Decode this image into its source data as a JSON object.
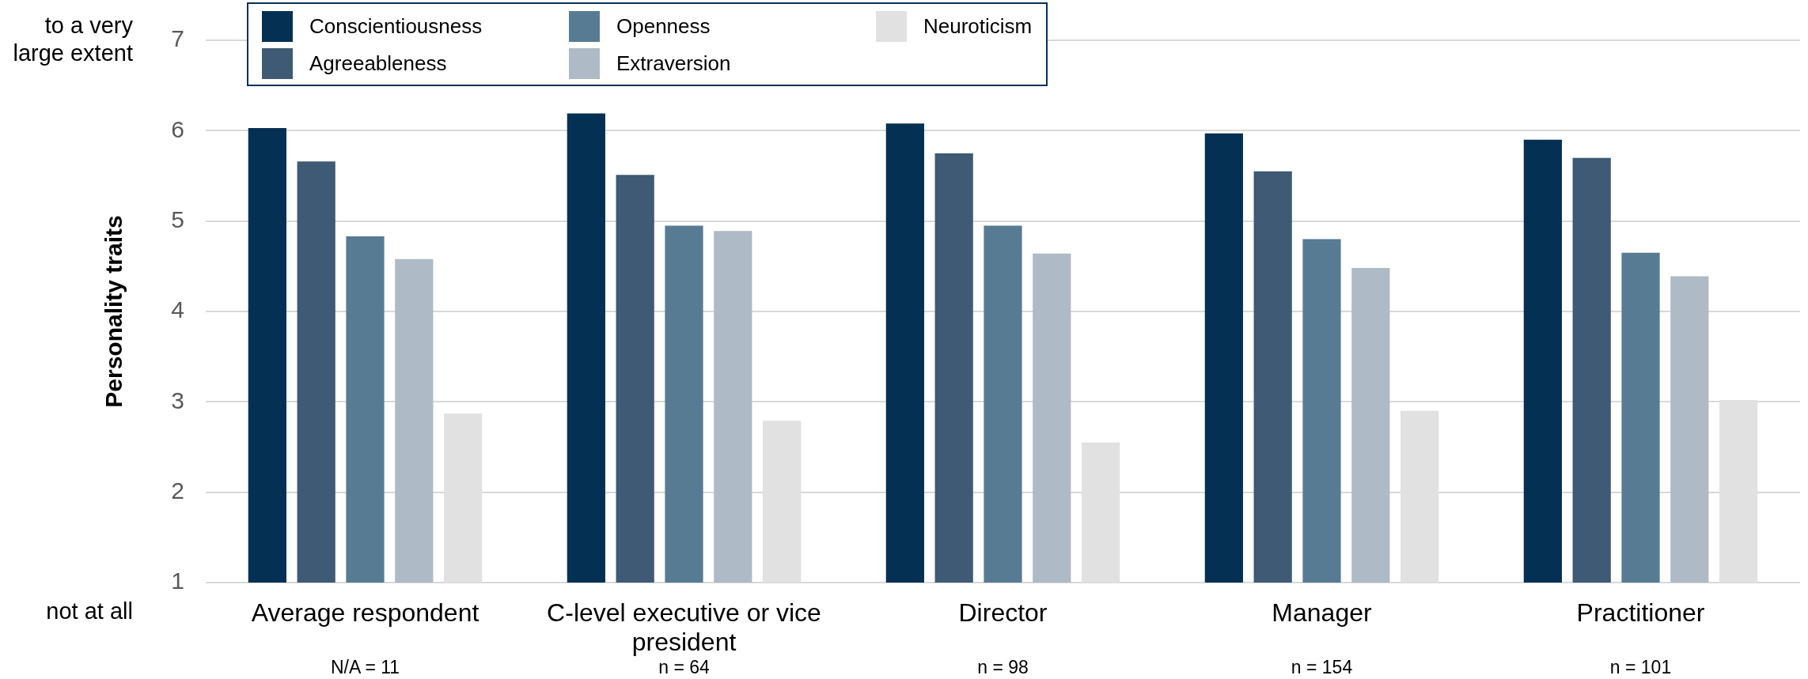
{
  "chart_data": {
    "type": "bar",
    "ylabel": "Personality traits",
    "categories": [
      "Average respondent",
      "C-level executive or vice president",
      "Director",
      "Manager",
      "Practitioner"
    ],
    "series": [
      {
        "name": "Conscientiousness",
        "color": "#033053",
        "values": [
          6.03,
          6.19,
          6.08,
          5.97,
          5.9
        ]
      },
      {
        "name": "Agreeableness",
        "color": "#3e5a74",
        "values": [
          5.66,
          5.51,
          5.75,
          5.55,
          5.7
        ]
      },
      {
        "name": "Openness",
        "color": "#587b94",
        "values": [
          4.83,
          4.95,
          4.95,
          4.8,
          4.65
        ]
      },
      {
        "name": "Extraversion",
        "color": "#aebac6",
        "values": [
          4.58,
          4.89,
          4.64,
          4.48,
          4.39
        ]
      },
      {
        "name": "Neuroticism",
        "color": "#e1e1e1",
        "values": [
          2.87,
          2.79,
          2.55,
          2.9,
          3.02
        ]
      }
    ],
    "ylim": [
      1,
      7
    ],
    "yticks": [
      1,
      2,
      3,
      4,
      5,
      6,
      7
    ],
    "grid": "y",
    "legend": "top left",
    "annotations": [
      "to a very large extent",
      "not at all",
      "N/A = 11",
      "n = 64",
      "n = 98",
      "n = 154",
      "n = 101"
    ]
  }
}
